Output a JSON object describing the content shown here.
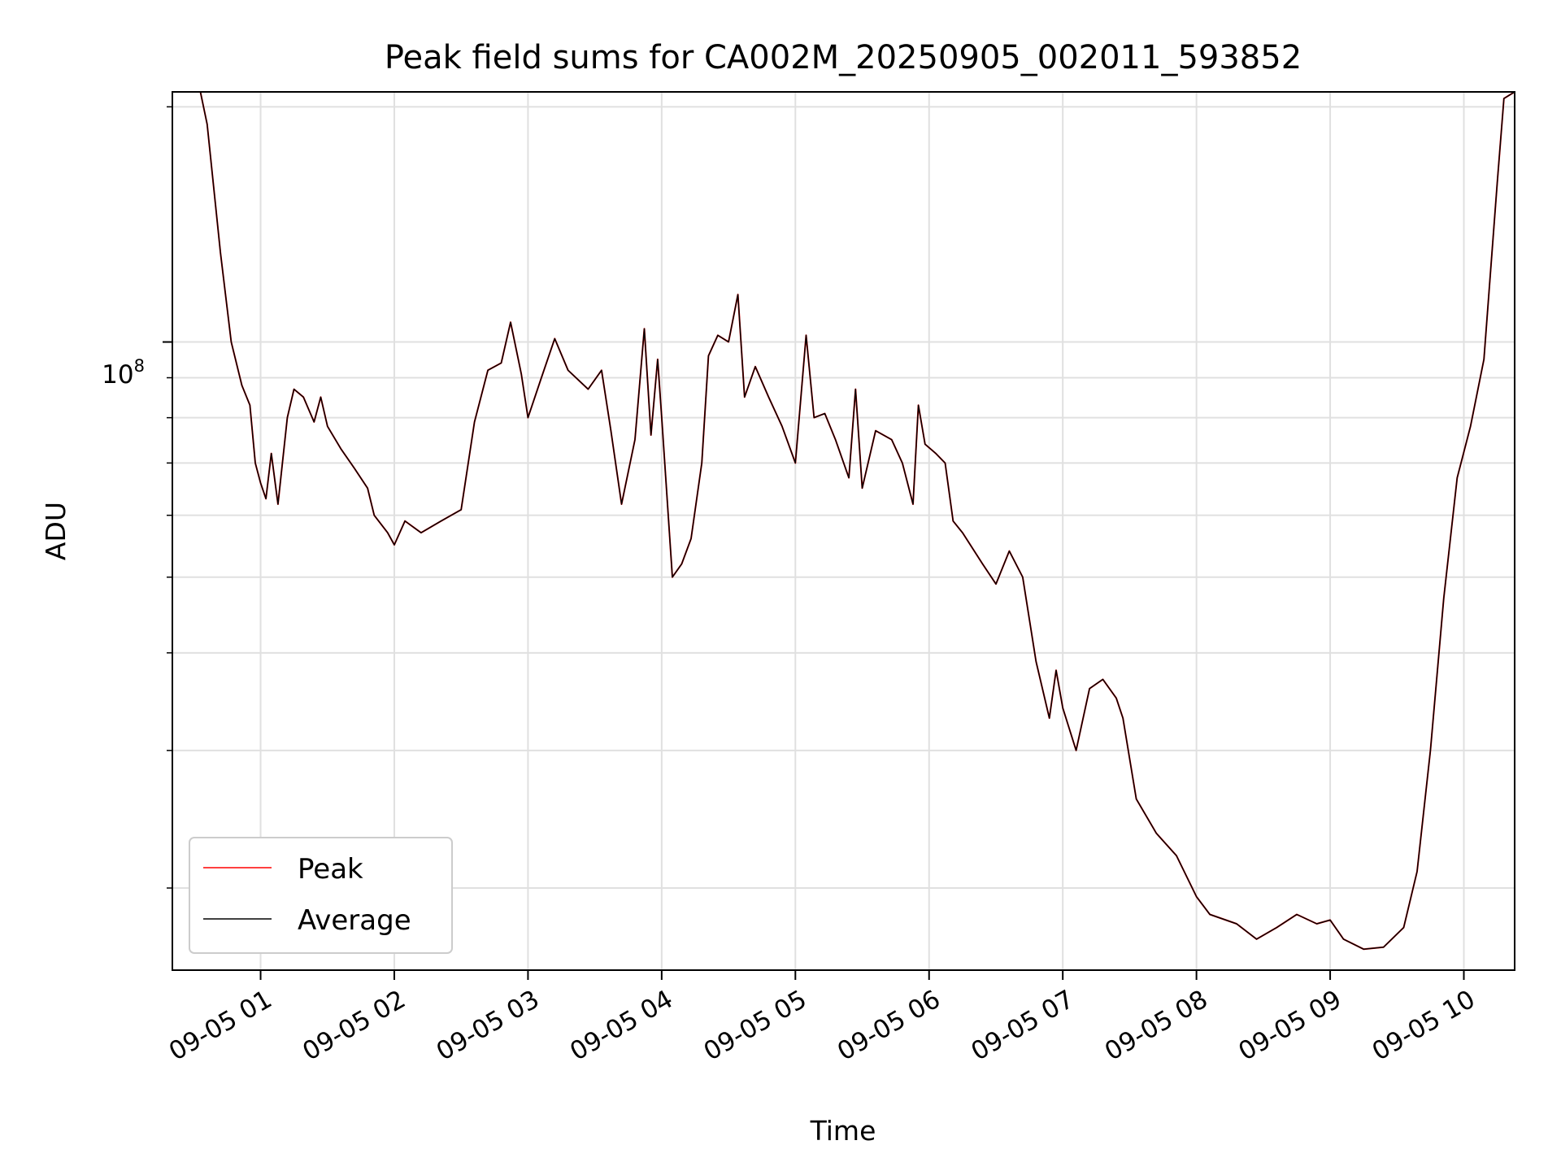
{
  "chart_data": {
    "type": "line",
    "title": "Peak field sums for CA002M_20250905_002011_593852",
    "xlabel": "Time",
    "ylabel": "ADU",
    "x_ticks": [
      "09-05 01",
      "09-05 02",
      "09-05 03",
      "09-05 04",
      "09-05 05",
      "09-05 06",
      "09-05 07",
      "09-05 08",
      "09-05 09",
      "09-05 10"
    ],
    "y_tick_label": {
      "base": "10",
      "exponent": "8",
      "value": 100000000
    },
    "y_scale": "log",
    "xlim_hours": [
      0.34,
      10.38
    ],
    "ylim": [
      15700000,
      209000000
    ],
    "grid": true,
    "legend_position": "lower left",
    "colors": {
      "peak": "#ff0000",
      "average": "#000000",
      "grid": "#e0e0e0"
    },
    "series": [
      {
        "name": "Peak",
        "color": "#ff0000",
        "values": [
          [
            0.34,
            209000000
          ],
          [
            0.55,
            209000000
          ],
          [
            0.6,
            190000000
          ],
          [
            0.7,
            130000000
          ],
          [
            0.78,
            100000000
          ],
          [
            0.86,
            88000000
          ],
          [
            0.92,
            83000000
          ],
          [
            0.96,
            70000000
          ],
          [
            1.0,
            66000000
          ],
          [
            1.04,
            63000000
          ],
          [
            1.08,
            72000000
          ],
          [
            1.13,
            62000000
          ],
          [
            1.2,
            80000000
          ],
          [
            1.25,
            87000000
          ],
          [
            1.32,
            85000000
          ],
          [
            1.4,
            79000000
          ],
          [
            1.45,
            85000000
          ],
          [
            1.5,
            78000000
          ],
          [
            1.6,
            73000000
          ],
          [
            1.7,
            69000000
          ],
          [
            1.8,
            65000000
          ],
          [
            1.85,
            60000000
          ],
          [
            1.95,
            57000000
          ],
          [
            2.0,
            55000000
          ],
          [
            2.08,
            59000000
          ],
          [
            2.2,
            57000000
          ],
          [
            2.35,
            59000000
          ],
          [
            2.5,
            61000000
          ],
          [
            2.6,
            79000000
          ],
          [
            2.7,
            92000000
          ],
          [
            2.8,
            94000000
          ],
          [
            2.87,
            106000000
          ],
          [
            2.95,
            91000000
          ],
          [
            3.0,
            80000000
          ],
          [
            3.1,
            90000000
          ],
          [
            3.2,
            101000000
          ],
          [
            3.3,
            92000000
          ],
          [
            3.45,
            87000000
          ],
          [
            3.55,
            92000000
          ],
          [
            3.62,
            77000000
          ],
          [
            3.7,
            62000000
          ],
          [
            3.8,
            75000000
          ],
          [
            3.87,
            104000000
          ],
          [
            3.92,
            76000000
          ],
          [
            3.97,
            95000000
          ],
          [
            4.0,
            80000000
          ],
          [
            4.08,
            50000000
          ],
          [
            4.15,
            52000000
          ],
          [
            4.22,
            56000000
          ],
          [
            4.3,
            70000000
          ],
          [
            4.35,
            96000000
          ],
          [
            4.42,
            102000000
          ],
          [
            4.5,
            100000000
          ],
          [
            4.57,
            115000000
          ],
          [
            4.62,
            85000000
          ],
          [
            4.7,
            93000000
          ],
          [
            4.8,
            85000000
          ],
          [
            4.9,
            78000000
          ],
          [
            5.0,
            70000000
          ],
          [
            5.08,
            102000000
          ],
          [
            5.14,
            80000000
          ],
          [
            5.22,
            81000000
          ],
          [
            5.3,
            75000000
          ],
          [
            5.4,
            67000000
          ],
          [
            5.45,
            87000000
          ],
          [
            5.5,
            65000000
          ],
          [
            5.6,
            77000000
          ],
          [
            5.72,
            75000000
          ],
          [
            5.8,
            70000000
          ],
          [
            5.88,
            62000000
          ],
          [
            5.92,
            83000000
          ],
          [
            5.97,
            74000000
          ],
          [
            6.05,
            72000000
          ],
          [
            6.12,
            70000000
          ],
          [
            6.18,
            59000000
          ],
          [
            6.25,
            57000000
          ],
          [
            6.4,
            52000000
          ],
          [
            6.5,
            49000000
          ],
          [
            6.6,
            54000000
          ],
          [
            6.7,
            50000000
          ],
          [
            6.8,
            39000000
          ],
          [
            6.9,
            33000000
          ],
          [
            6.95,
            38000000
          ],
          [
            7.0,
            34000000
          ],
          [
            7.1,
            30000000
          ],
          [
            7.2,
            36000000
          ],
          [
            7.3,
            37000000
          ],
          [
            7.4,
            35000000
          ],
          [
            7.45,
            33000000
          ],
          [
            7.55,
            26000000
          ],
          [
            7.7,
            23500000
          ],
          [
            7.85,
            22000000
          ],
          [
            8.0,
            19500000
          ],
          [
            8.1,
            18500000
          ],
          [
            8.3,
            18000000
          ],
          [
            8.45,
            17200000
          ],
          [
            8.6,
            17800000
          ],
          [
            8.75,
            18500000
          ],
          [
            8.9,
            18000000
          ],
          [
            9.0,
            18200000
          ],
          [
            9.1,
            17200000
          ],
          [
            9.25,
            16700000
          ],
          [
            9.4,
            16800000
          ],
          [
            9.55,
            17800000
          ],
          [
            9.65,
            21000000
          ],
          [
            9.75,
            30000000
          ],
          [
            9.85,
            47000000
          ],
          [
            9.95,
            67000000
          ],
          [
            10.05,
            78000000
          ],
          [
            10.15,
            95000000
          ],
          [
            10.25,
            160000000
          ],
          [
            10.3,
            205000000
          ],
          [
            10.38,
            209000000
          ]
        ]
      },
      {
        "name": "Average",
        "color": "#000000",
        "values": [
          [
            0.34,
            209000000
          ],
          [
            0.55,
            209000000
          ],
          [
            0.6,
            190000000
          ],
          [
            0.7,
            130000000
          ],
          [
            0.78,
            100000000
          ],
          [
            0.86,
            88000000
          ],
          [
            0.92,
            83000000
          ],
          [
            0.96,
            70000000
          ],
          [
            1.0,
            66000000
          ],
          [
            1.04,
            63000000
          ],
          [
            1.08,
            72000000
          ],
          [
            1.13,
            62000000
          ],
          [
            1.2,
            80000000
          ],
          [
            1.25,
            87000000
          ],
          [
            1.32,
            85000000
          ],
          [
            1.4,
            79000000
          ],
          [
            1.45,
            85000000
          ],
          [
            1.5,
            78000000
          ],
          [
            1.6,
            73000000
          ],
          [
            1.7,
            69000000
          ],
          [
            1.8,
            65000000
          ],
          [
            1.85,
            60000000
          ],
          [
            1.95,
            57000000
          ],
          [
            2.0,
            55000000
          ],
          [
            2.08,
            59000000
          ],
          [
            2.2,
            57000000
          ],
          [
            2.35,
            59000000
          ],
          [
            2.5,
            61000000
          ],
          [
            2.6,
            79000000
          ],
          [
            2.7,
            92000000
          ],
          [
            2.8,
            94000000
          ],
          [
            2.87,
            106000000
          ],
          [
            2.95,
            91000000
          ],
          [
            3.0,
            80000000
          ],
          [
            3.1,
            90000000
          ],
          [
            3.2,
            101000000
          ],
          [
            3.3,
            92000000
          ],
          [
            3.45,
            87000000
          ],
          [
            3.55,
            92000000
          ],
          [
            3.62,
            77000000
          ],
          [
            3.7,
            62000000
          ],
          [
            3.8,
            75000000
          ],
          [
            3.87,
            104000000
          ],
          [
            3.92,
            76000000
          ],
          [
            3.97,
            95000000
          ],
          [
            4.0,
            80000000
          ],
          [
            4.08,
            50000000
          ],
          [
            4.15,
            52000000
          ],
          [
            4.22,
            56000000
          ],
          [
            4.3,
            70000000
          ],
          [
            4.35,
            96000000
          ],
          [
            4.42,
            102000000
          ],
          [
            4.5,
            100000000
          ],
          [
            4.57,
            115000000
          ],
          [
            4.62,
            85000000
          ],
          [
            4.7,
            93000000
          ],
          [
            4.8,
            85000000
          ],
          [
            4.9,
            78000000
          ],
          [
            5.0,
            70000000
          ],
          [
            5.08,
            102000000
          ],
          [
            5.14,
            80000000
          ],
          [
            5.22,
            81000000
          ],
          [
            5.3,
            75000000
          ],
          [
            5.4,
            67000000
          ],
          [
            5.45,
            87000000
          ],
          [
            5.5,
            65000000
          ],
          [
            5.6,
            77000000
          ],
          [
            5.72,
            75000000
          ],
          [
            5.8,
            70000000
          ],
          [
            5.88,
            62000000
          ],
          [
            5.92,
            83000000
          ],
          [
            5.97,
            74000000
          ],
          [
            6.05,
            72000000
          ],
          [
            6.12,
            70000000
          ],
          [
            6.18,
            59000000
          ],
          [
            6.25,
            57000000
          ],
          [
            6.4,
            52000000
          ],
          [
            6.5,
            49000000
          ],
          [
            6.6,
            54000000
          ],
          [
            6.7,
            50000000
          ],
          [
            6.8,
            39000000
          ],
          [
            6.9,
            33000000
          ],
          [
            6.95,
            38000000
          ],
          [
            7.0,
            34000000
          ],
          [
            7.1,
            30000000
          ],
          [
            7.2,
            36000000
          ],
          [
            7.3,
            37000000
          ],
          [
            7.4,
            35000000
          ],
          [
            7.45,
            33000000
          ],
          [
            7.55,
            26000000
          ],
          [
            7.7,
            23500000
          ],
          [
            7.85,
            22000000
          ],
          [
            8.0,
            19500000
          ],
          [
            8.1,
            18500000
          ],
          [
            8.3,
            18000000
          ],
          [
            8.45,
            17200000
          ],
          [
            8.6,
            17800000
          ],
          [
            8.75,
            18500000
          ],
          [
            8.9,
            18000000
          ],
          [
            9.0,
            18200000
          ],
          [
            9.1,
            17200000
          ],
          [
            9.25,
            16700000
          ],
          [
            9.4,
            16800000
          ],
          [
            9.55,
            17800000
          ],
          [
            9.65,
            21000000
          ],
          [
            9.75,
            30000000
          ],
          [
            9.85,
            47000000
          ],
          [
            9.95,
            67000000
          ],
          [
            10.05,
            78000000
          ],
          [
            10.15,
            95000000
          ],
          [
            10.25,
            160000000
          ],
          [
            10.3,
            205000000
          ],
          [
            10.38,
            209000000
          ]
        ]
      }
    ]
  }
}
